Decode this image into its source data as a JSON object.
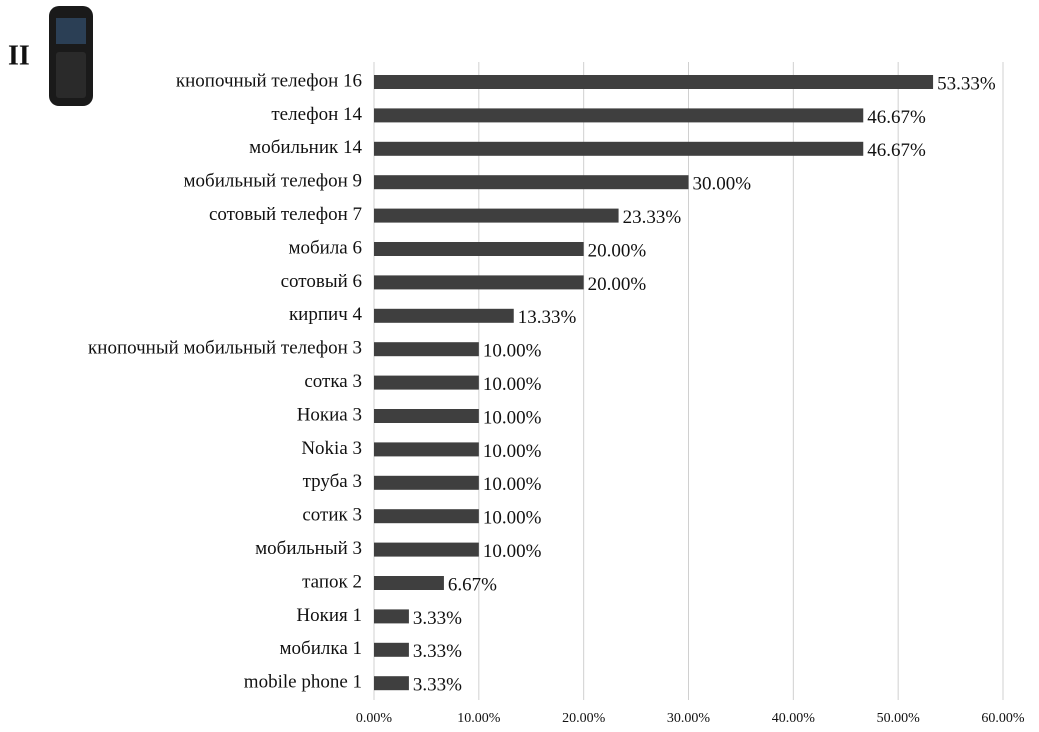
{
  "chart_data": {
    "type": "bar",
    "orientation": "horizontal",
    "panel_label": "II",
    "categories": [
      "кнопочный телефон 16",
      "телефон 14",
      "мобильник 14",
      "мобильный телефон 9",
      "сотовый телефон 7",
      "мобила 6",
      "сотовый 6",
      "кирпич 4",
      "кнопочный мобильный телефон 3",
      "сотка 3",
      "Нокиа 3",
      "Nokia 3",
      "труба 3",
      "сотик 3",
      "мобильный 3",
      "тапок 2",
      "Нокия 1",
      "мобилка 1",
      "mobile phone 1"
    ],
    "values": [
      53.33,
      46.67,
      46.67,
      30.0,
      23.33,
      20.0,
      20.0,
      13.33,
      10.0,
      10.0,
      10.0,
      10.0,
      10.0,
      10.0,
      10.0,
      6.67,
      3.33,
      3.33,
      3.33
    ],
    "value_labels": [
      "53.33%",
      "46.67%",
      "46.67%",
      "30.00%",
      "23.33%",
      "20.00%",
      "20.00%",
      "13.33%",
      "10.00%",
      "10.00%",
      "10.00%",
      "10.00%",
      "10.00%",
      "10.00%",
      "10.00%",
      "6.67%",
      "3.33%",
      "3.33%",
      "3.33%"
    ],
    "color": "#3f3f3f",
    "xlim": [
      0,
      60
    ],
    "xticks": [
      {
        "value": 0,
        "label": "0.00%"
      },
      {
        "value": 10,
        "label": "10.00%"
      },
      {
        "value": 20,
        "label": "20.00%"
      },
      {
        "value": 30,
        "label": "30.00%"
      },
      {
        "value": 40,
        "label": "40.00%"
      },
      {
        "value": 50,
        "label": "50.00%"
      },
      {
        "value": 60,
        "label": "60.00%"
      }
    ],
    "grid": true
  }
}
